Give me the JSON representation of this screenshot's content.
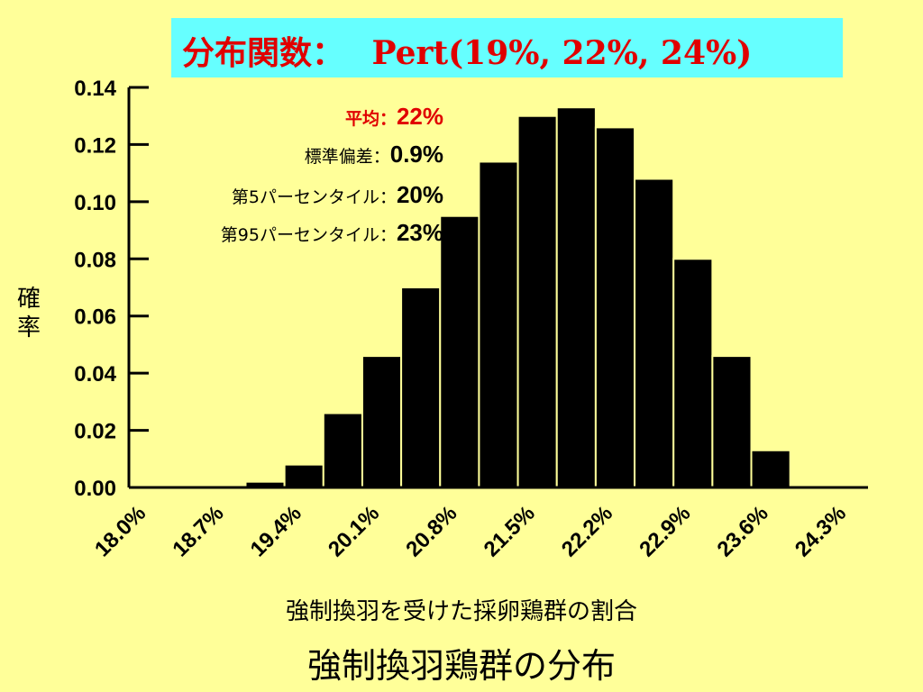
{
  "title": "分布関数：　 Pert(19%, 22%, 24%)",
  "stats": {
    "mean_label": "平均：",
    "mean_value": "22%",
    "sd_label": "標準偏差：",
    "sd_value": "0.9%",
    "p5_label": "第5パーセンタイル：",
    "p5_value": "20%",
    "p95_label": "第95パーセンタイル：",
    "p95_value": "23%"
  },
  "caption": "強制換羽鶏群の分布",
  "colors": {
    "background": "#ffff99",
    "title_bg": "#66ffff",
    "title_text": "#e00000",
    "bars": "#000000"
  },
  "chart_data": {
    "type": "bar",
    "xlabel": "強制換羽を受けた採卵鶏群の割合",
    "ylabel": "確率",
    "ylim": [
      0,
      0.14
    ],
    "yticks": [
      "0.00",
      "0.02",
      "0.04",
      "0.06",
      "0.08",
      "0.10",
      "0.12",
      "0.14"
    ],
    "xticks": [
      "18.0%",
      "18.7%",
      "19.4%",
      "20.1%",
      "20.8%",
      "21.5%",
      "22.2%",
      "22.9%",
      "23.6%",
      "24.3%"
    ],
    "bin_start": 18.0,
    "bin_width": 0.35,
    "values": [
      0,
      0,
      0,
      0.002,
      0.008,
      0.026,
      0.046,
      0.07,
      0.095,
      0.114,
      0.13,
      0.133,
      0.126,
      0.108,
      0.08,
      0.046,
      0.013,
      0,
      0
    ],
    "grid": false,
    "legend": "none"
  }
}
